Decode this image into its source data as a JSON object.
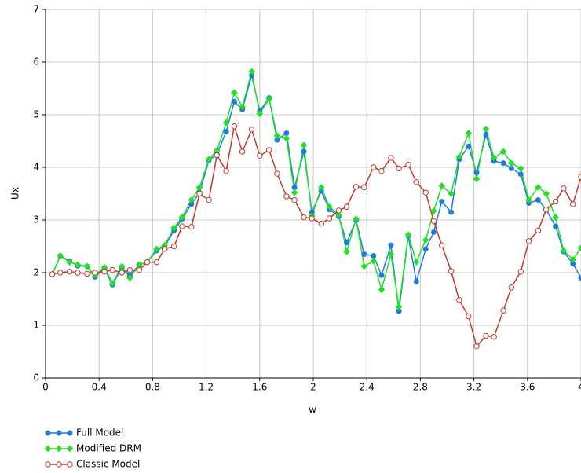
{
  "chart_data": {
    "type": "line",
    "x_label": "w",
    "y_label": "Ux",
    "x": [
      0.05,
      0.11,
      0.18,
      0.24,
      0.31,
      0.37,
      0.44,
      0.5,
      0.57,
      0.63,
      0.7,
      0.76,
      0.83,
      0.89,
      0.96,
      1.02,
      1.09,
      1.15,
      1.22,
      1.28,
      1.35,
      1.41,
      1.47,
      1.54,
      1.6,
      1.67,
      1.73,
      1.8,
      1.86,
      1.93,
      1.99,
      2.06,
      2.12,
      2.19,
      2.25,
      2.32,
      2.38,
      2.45,
      2.51,
      2.58,
      2.64,
      2.71,
      2.77,
      2.84,
      2.9,
      2.96,
      3.03,
      3.09,
      3.16,
      3.22,
      3.29,
      3.35,
      3.42,
      3.48,
      3.55,
      3.61,
      3.68,
      3.74,
      3.81,
      3.87,
      3.94,
      4.0
    ],
    "series": [
      {
        "name": "Full Model",
        "color": "#1f7ae0",
        "marker": "circle",
        "values": [
          1.97,
          2.32,
          2.22,
          2.13,
          2.12,
          1.92,
          2.08,
          1.77,
          2.1,
          1.95,
          2.15,
          2.2,
          2.42,
          2.5,
          2.8,
          3.02,
          3.3,
          3.52,
          4.13,
          4.25,
          4.68,
          5.25,
          5.1,
          5.75,
          5.07,
          5.32,
          4.52,
          4.65,
          3.62,
          4.3,
          3.15,
          3.55,
          3.2,
          3.07,
          2.57,
          3.0,
          2.35,
          2.32,
          1.95,
          2.52,
          1.27,
          2.7,
          1.83,
          2.45,
          2.77,
          3.35,
          3.15,
          4.15,
          4.4,
          3.9,
          4.62,
          4.12,
          4.08,
          3.98,
          3.87,
          3.32,
          3.38,
          3.2,
          2.88,
          2.4,
          2.17,
          1.9
        ]
      },
      {
        "name": "Modified DRM",
        "color": "#22e022",
        "marker": "diamond",
        "values": [
          1.97,
          2.32,
          2.2,
          2.15,
          2.12,
          1.95,
          2.1,
          1.8,
          2.12,
          1.9,
          2.15,
          2.2,
          2.45,
          2.52,
          2.85,
          3.05,
          3.38,
          3.62,
          4.15,
          4.32,
          4.85,
          5.42,
          5.15,
          5.82,
          5.02,
          5.3,
          4.6,
          4.55,
          3.52,
          4.42,
          3.08,
          3.62,
          3.25,
          3.1,
          2.4,
          3.02,
          2.12,
          2.22,
          1.68,
          2.35,
          1.35,
          2.72,
          2.2,
          2.62,
          3.17,
          3.65,
          3.5,
          4.2,
          4.65,
          3.78,
          4.73,
          4.18,
          4.3,
          4.08,
          3.98,
          3.38,
          3.62,
          3.5,
          3.05,
          2.42,
          2.25,
          2.47
        ]
      },
      {
        "name": "Classic Model",
        "color": "#c0392b",
        "marker": "open-circle",
        "values": [
          1.97,
          2.0,
          2.02,
          2.0,
          1.98,
          2.0,
          2.02,
          2.05,
          2.0,
          2.05,
          2.05,
          2.2,
          2.2,
          2.45,
          2.5,
          2.88,
          2.87,
          3.5,
          3.38,
          4.23,
          3.93,
          4.78,
          4.3,
          4.72,
          4.22,
          4.33,
          3.88,
          3.45,
          3.38,
          3.05,
          3.03,
          2.93,
          3.03,
          3.18,
          3.25,
          3.63,
          3.62,
          4.0,
          3.93,
          4.18,
          3.98,
          4.05,
          3.72,
          3.52,
          2.98,
          2.52,
          2.03,
          1.48,
          1.17,
          0.6,
          0.8,
          0.78,
          1.28,
          1.72,
          2.02,
          2.6,
          2.8,
          3.2,
          3.35,
          3.6,
          3.3,
          3.82
        ]
      }
    ],
    "xlim": [
      0,
      4
    ],
    "xticks": [
      0,
      0.4,
      0.8,
      1.2,
      1.6,
      2,
      2.4,
      2.8,
      3.2,
      3.6,
      4
    ],
    "ylim": [
      0,
      7
    ],
    "yticks": [
      0,
      1,
      2,
      3,
      4,
      5,
      6,
      7
    ],
    "grid": true
  }
}
